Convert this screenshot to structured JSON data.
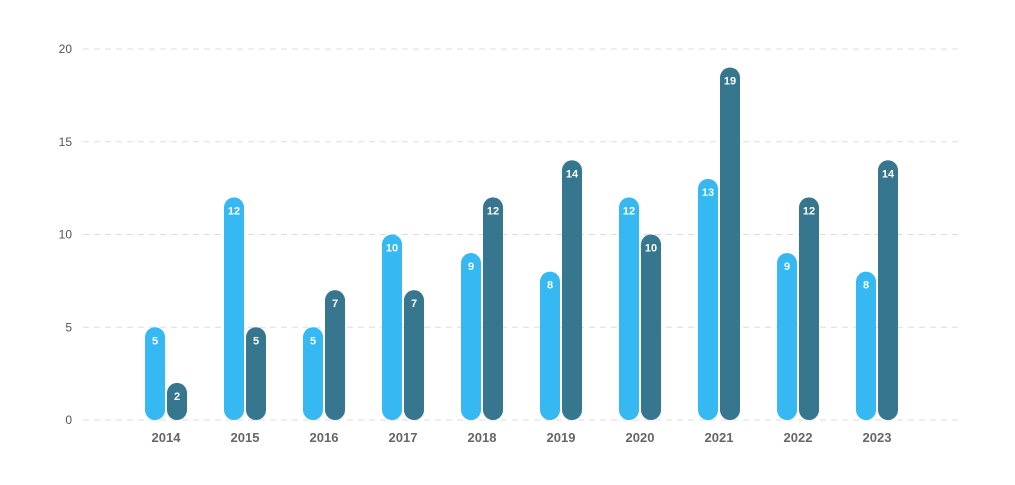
{
  "chart_data": {
    "type": "bar",
    "categories": [
      "2014",
      "2015",
      "2016",
      "2017",
      "2018",
      "2019",
      "2020",
      "2021",
      "2022",
      "2023"
    ],
    "series": [
      {
        "values": [
          5,
          12,
          5,
          10,
          9,
          8,
          12,
          13,
          9,
          8
        ],
        "color": "#36b9f2"
      },
      {
        "values": [
          2,
          5,
          7,
          7,
          12,
          14,
          10,
          19,
          12,
          14
        ],
        "color": "#36768e"
      }
    ],
    "yticks": [
      "0",
      "5",
      "10",
      "15",
      "20"
    ],
    "ylim": [
      0,
      20
    ],
    "grid": true,
    "data_labels": true,
    "title": "",
    "xlabel": "",
    "ylabel": ""
  }
}
